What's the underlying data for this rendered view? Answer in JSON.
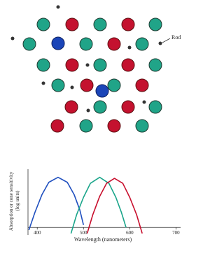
{
  "diagram": {
    "label": "Rod"
  },
  "chart_data": {
    "type": "line",
    "xlabel": "Wavelength (nanometers)",
    "ylabel": [
      "Absorption or cone sensitivity",
      "(log units)"
    ],
    "xlim": [
      380,
      710
    ],
    "xticks": [
      400,
      500,
      600,
      700
    ],
    "ylim": [
      -0.15,
      1.05
    ],
    "series": [
      {
        "color": "#1f4fbf",
        "x": [
          382,
          395,
          410,
          425,
          445,
          465,
          480,
          492,
          500
        ],
        "values": [
          -0.05,
          0.3,
          0.65,
          0.9,
          1.0,
          0.9,
          0.65,
          0.35,
          0.05
        ]
      },
      {
        "color": "#1aa58a",
        "x": [
          473,
          485,
          500,
          515,
          535,
          555,
          570,
          582,
          592
        ],
        "values": [
          -0.12,
          0.25,
          0.6,
          0.88,
          1.0,
          0.88,
          0.6,
          0.3,
          0.0
        ]
      },
      {
        "color": "#c8102e",
        "x": [
          508,
          520,
          535,
          550,
          567,
          585,
          600,
          615,
          627
        ],
        "values": [
          -0.12,
          0.25,
          0.62,
          0.88,
          0.98,
          0.88,
          0.6,
          0.25,
          -0.12
        ]
      }
    ]
  }
}
